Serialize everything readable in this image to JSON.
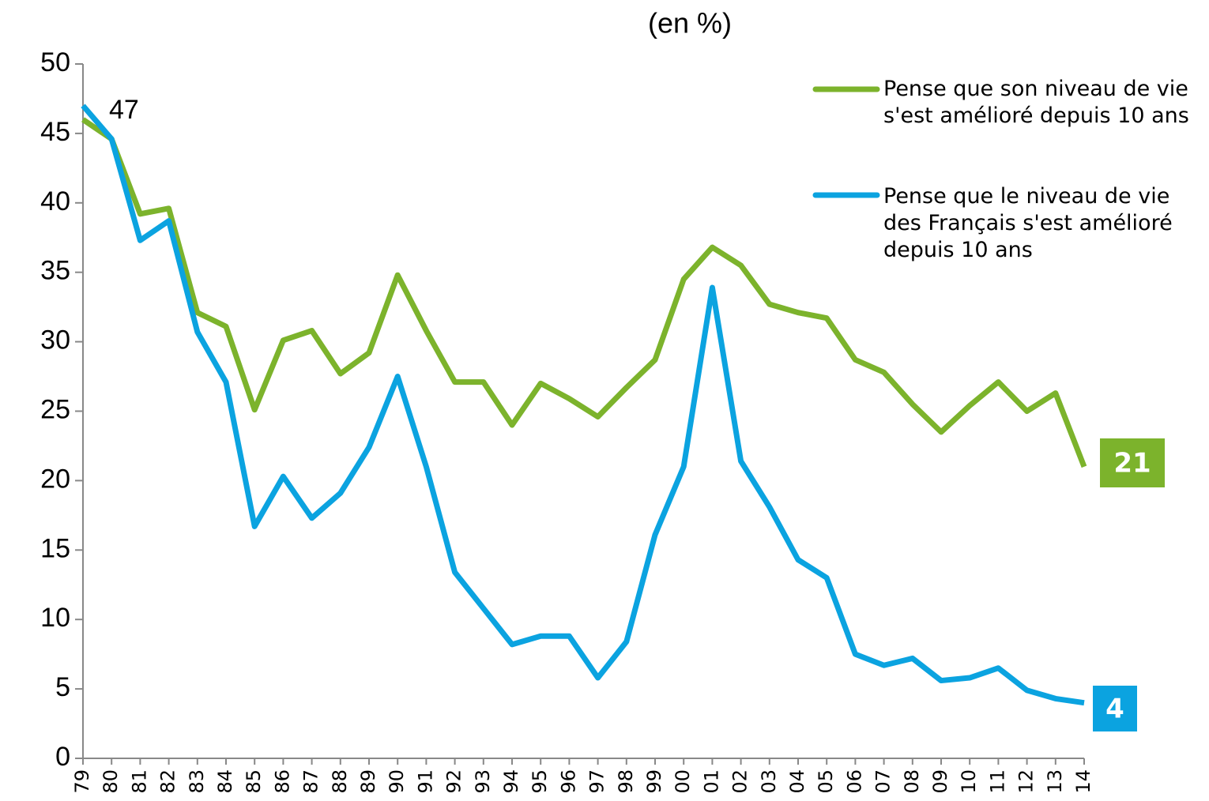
{
  "chart_data": {
    "type": "line",
    "title": "(en %)",
    "categories": [
      "79",
      "80",
      "81",
      "82",
      "83",
      "84",
      "85",
      "86",
      "87",
      "88",
      "89",
      "90",
      "91",
      "92",
      "93",
      "94",
      "95",
      "96",
      "97",
      "98",
      "99",
      "00",
      "01",
      "02",
      "03",
      "04",
      "05",
      "06",
      "07",
      "08",
      "09",
      "10",
      "11",
      "12",
      "13",
      "14"
    ],
    "series": [
      {
        "name": "Pense que son niveau de vie s'est amélioré depuis 10 ans",
        "color": "#7cb32c",
        "values": [
          46.0,
          44.6,
          39.2,
          39.6,
          32.1,
          31.1,
          25.1,
          30.1,
          30.8,
          27.7,
          29.2,
          34.8,
          30.8,
          27.1,
          27.1,
          24.0,
          27.0,
          25.9,
          24.6,
          26.7,
          28.7,
          34.5,
          36.8,
          35.5,
          32.7,
          32.1,
          31.7,
          28.7,
          27.8,
          25.5,
          23.5,
          25.4,
          27.1,
          25.0,
          26.3,
          21
        ]
      },
      {
        "name": "Pense que le niveau de vie des Français s'est amélioré depuis 10 ans",
        "color": "#0ba3e0",
        "values": [
          47,
          44.6,
          37.3,
          38.7,
          30.7,
          27.1,
          16.7,
          20.3,
          17.3,
          19.1,
          22.4,
          27.5,
          21.0,
          13.4,
          10.8,
          8.2,
          8.8,
          8.8,
          5.8,
          8.4,
          16.1,
          21.0,
          33.9,
          21.4,
          18.1,
          14.3,
          13.0,
          7.5,
          6.7,
          7.2,
          5.6,
          5.8,
          6.5,
          4.9,
          4.3,
          4
        ]
      }
    ],
    "ylim": [
      0,
      50
    ],
    "yticks": [
      0,
      5,
      10,
      15,
      20,
      25,
      30,
      35,
      40,
      45,
      50
    ],
    "legend": "top-right"
  }
}
